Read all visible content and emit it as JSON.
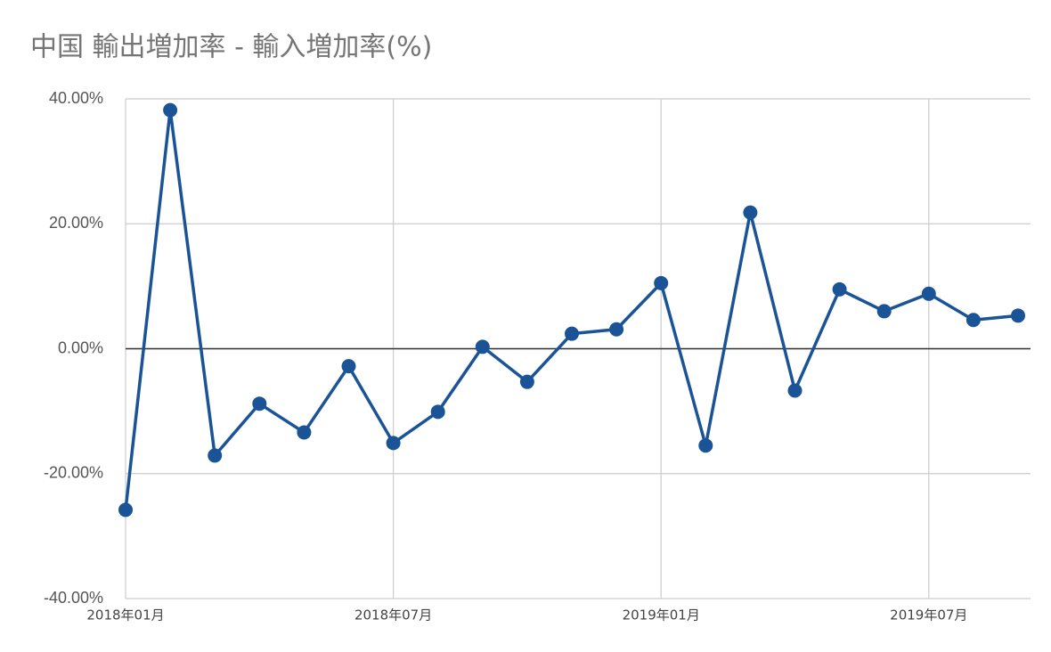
{
  "chart_data": {
    "type": "line",
    "title": "中国 輸出増加率 - 輸入増加率(%)",
    "categories": [
      "2018年01月",
      null,
      null,
      null,
      null,
      null,
      "2018年07月",
      null,
      null,
      null,
      null,
      null,
      "2019年01月",
      null,
      null,
      null,
      null,
      null,
      "2019年07月",
      null,
      null
    ],
    "series": [
      {
        "color": "#1a5496",
        "values": [
          -25.8,
          38.2,
          -17.1,
          -8.8,
          -13.4,
          -2.8,
          -15.1,
          -10.1,
          0.3,
          -5.3,
          2.4,
          3.1,
          10.5,
          -15.5,
          21.8,
          -6.7,
          9.5,
          6.0,
          8.8,
          4.6,
          5.3
        ]
      }
    ],
    "ylim": [
      -40,
      40
    ],
    "yticks": [
      {
        "value": -40,
        "label": "-40.00%"
      },
      {
        "value": -20,
        "label": "-20.00%"
      },
      {
        "value": 0,
        "label": "0.00%"
      },
      {
        "value": 20,
        "label": "20.00%"
      },
      {
        "value": 40,
        "label": "40.00%"
      }
    ],
    "grid": true
  }
}
